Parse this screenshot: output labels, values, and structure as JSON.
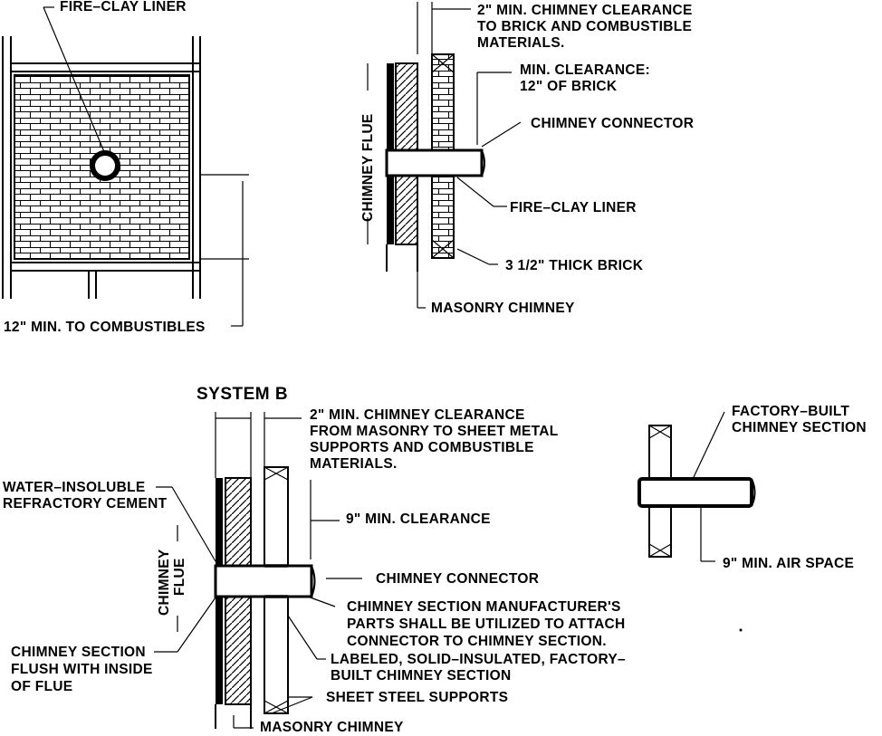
{
  "labels": {
    "fire_clay_liner_top": "FIRE–CLAY LINER",
    "twelve_min_combustibles": "12\" MIN. TO COMBUSTIBLES",
    "sysA_clearance_1": "2\" MIN. CHIMNEY CLEARANCE",
    "sysA_clearance_2": "TO BRICK AND COMBUSTIBLE",
    "sysA_clearance_3": "MATERIALS.",
    "sysA_min_clearance_1": "MIN. CLEARANCE:",
    "sysA_min_clearance_2": "12\" OF BRICK",
    "sysA_chimney_connector": "CHIMNEY CONNECTOR",
    "sysA_fire_clay_liner": "FIRE–CLAY LINER",
    "sysA_thick_brick": "3 1/2\" THICK BRICK",
    "sysA_masonry_chimney": "MASONRY CHIMNEY",
    "sysA_chimney_flue": "CHIMNEY FLUE",
    "sysB_title": "SYSTEM B",
    "sysB_clearance_1": "2\" MIN. CHIMNEY CLEARANCE",
    "sysB_clearance_2": "FROM MASONRY TO SHEET METAL",
    "sysB_clearance_3": "SUPPORTS AND COMBUSTIBLE",
    "sysB_clearance_4": "MATERIALS.",
    "sysB_cement_1": "WATER–INSOLUBLE",
    "sysB_cement_2": "REFRACTORY CEMENT",
    "sysB_nine_min": "9\" MIN. CLEARANCE",
    "sysB_chimney_connector": "CHIMNEY CONNECTOR",
    "sysB_parts_1": "CHIMNEY SECTION MANUFACTURER'S",
    "sysB_parts_2": "PARTS SHALL BE UTILIZED TO ATTACH",
    "sysB_parts_3": "CONNECTOR TO CHIMNEY SECTION.",
    "sysB_labeled_1": "LABELED, SOLID–INSULATED, FACTORY–",
    "sysB_labeled_2": "BUILT CHIMNEY SECTION",
    "sysB_flush_1": "CHIMNEY SECTION",
    "sysB_flush_2": "FLUSH WITH INSIDE",
    "sysB_flush_3": "OF FLUE",
    "sysB_sheet_steel": "SHEET STEEL SUPPORTS",
    "sysB_masonry_chimney": "MASONRY CHIMNEY",
    "sysB_chimney_flue_1": "CHIMNEY",
    "sysB_chimney_flue_2": "FLUE",
    "factory_built_1": "FACTORY–BUILT",
    "factory_built_2": "CHIMNEY SECTION",
    "nine_air_space": "9\" MIN. AIR SPACE"
  }
}
